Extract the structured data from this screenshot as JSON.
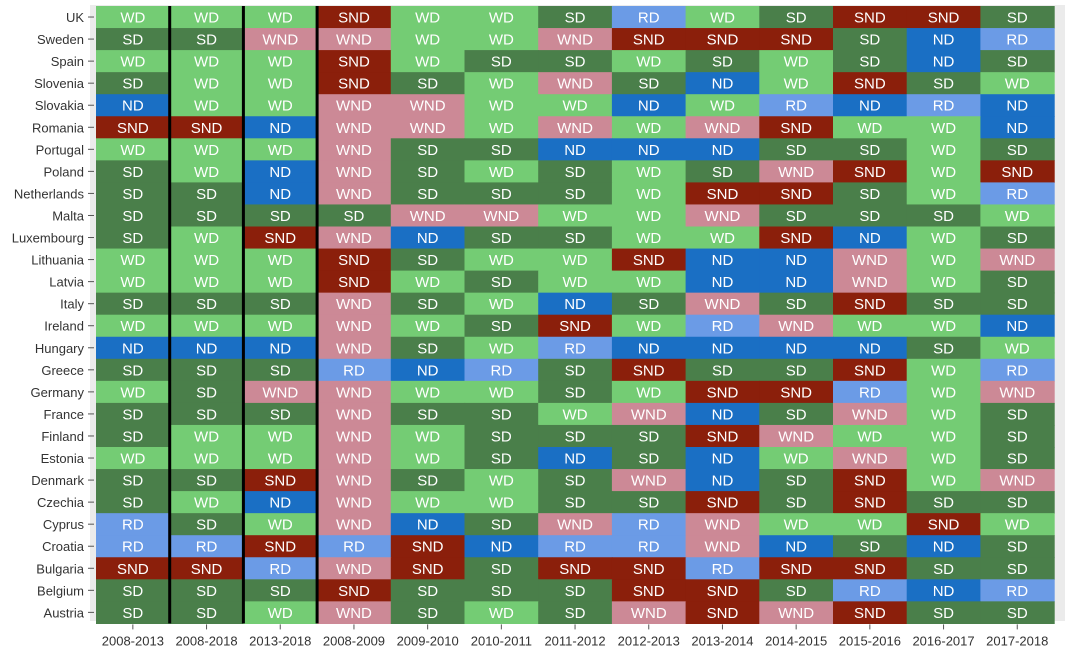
{
  "chart_data": {
    "type": "heatmap",
    "title": "",
    "xlabel": "",
    "ylabel": "",
    "columns": [
      "2008-2013",
      "2008-2018",
      "2013-2018",
      "2008-2009",
      "2009-2010",
      "2010-2011",
      "2011-2012",
      "2012-2013",
      "2013-2014",
      "2014-2015",
      "2015-2016",
      "2016-2017",
      "2017-2018"
    ],
    "rows": [
      "UK",
      "Sweden",
      "Spain",
      "Slovenia",
      "Slovakia",
      "Romania",
      "Portugal",
      "Poland",
      "Netherlands",
      "Malta",
      "Luxembourg",
      "Lithuania",
      "Latvia",
      "Italy",
      "Ireland",
      "Hungary",
      "Greece",
      "Germany",
      "France",
      "Finland",
      "Estonia",
      "Denmark",
      "Czechia",
      "Cyprus",
      "Croatia",
      "Bulgaria",
      "Belgium",
      "Austria"
    ],
    "categories": [
      "SND",
      "WND",
      "ND",
      "RD",
      "SD",
      "WD"
    ],
    "category_colors": {
      "SND": "#8b1f0b",
      "WND": "#cc8996",
      "ND": "#1a6fc4",
      "RD": "#6b9be6",
      "SD": "#4a7f4a",
      "WD": "#74cc74"
    },
    "column_separators_after": [
      0,
      1,
      2
    ],
    "grid": false,
    "legend": "none",
    "values": [
      [
        "WD",
        "WD",
        "WD",
        "SND",
        "WD",
        "WD",
        "SD",
        "RD",
        "WD",
        "SD",
        "SND",
        "SND",
        "SD"
      ],
      [
        "SD",
        "SD",
        "WND",
        "WND",
        "WD",
        "WD",
        "WND",
        "SND",
        "SND",
        "SND",
        "SD",
        "ND",
        "RD"
      ],
      [
        "WD",
        "WD",
        "WD",
        "SND",
        "WD",
        "SD",
        "SD",
        "WD",
        "SD",
        "WD",
        "SD",
        "ND",
        "SD"
      ],
      [
        "SD",
        "WD",
        "WD",
        "SND",
        "SD",
        "WD",
        "WND",
        "SD",
        "ND",
        "WD",
        "SND",
        "SD",
        "WD"
      ],
      [
        "ND",
        "WD",
        "WD",
        "WND",
        "WND",
        "WD",
        "WD",
        "ND",
        "WD",
        "RD",
        "ND",
        "RD",
        "ND"
      ],
      [
        "SND",
        "SND",
        "ND",
        "WND",
        "WND",
        "WD",
        "WND",
        "WD",
        "WND",
        "SND",
        "WD",
        "WD",
        "ND"
      ],
      [
        "WD",
        "WD",
        "WD",
        "WND",
        "SD",
        "SD",
        "ND",
        "ND",
        "ND",
        "SD",
        "SD",
        "WD",
        "SD"
      ],
      [
        "SD",
        "WD",
        "ND",
        "WND",
        "SD",
        "WD",
        "SD",
        "WD",
        "SD",
        "WND",
        "SND",
        "WD",
        "SND"
      ],
      [
        "SD",
        "SD",
        "ND",
        "WND",
        "SD",
        "SD",
        "SD",
        "WD",
        "SND",
        "SND",
        "SD",
        "WD",
        "RD"
      ],
      [
        "SD",
        "SD",
        "SD",
        "SD",
        "WND",
        "WND",
        "WD",
        "WD",
        "WND",
        "SD",
        "SD",
        "SD",
        "WD"
      ],
      [
        "SD",
        "WD",
        "SND",
        "WND",
        "ND",
        "SD",
        "SD",
        "WD",
        "WD",
        "SND",
        "ND",
        "WD",
        "SD"
      ],
      [
        "WD",
        "WD",
        "WD",
        "SND",
        "SD",
        "WD",
        "WD",
        "SND",
        "ND",
        "ND",
        "WND",
        "WD",
        "WND"
      ],
      [
        "WD",
        "WD",
        "WD",
        "SND",
        "WD",
        "SD",
        "WD",
        "WD",
        "ND",
        "ND",
        "WND",
        "WD",
        "SD"
      ],
      [
        "SD",
        "SD",
        "SD",
        "WND",
        "SD",
        "WD",
        "ND",
        "SD",
        "WND",
        "SD",
        "SND",
        "SD",
        "SD"
      ],
      [
        "WD",
        "WD",
        "WD",
        "WND",
        "WD",
        "SD",
        "SND",
        "WD",
        "RD",
        "WND",
        "WD",
        "WD",
        "ND"
      ],
      [
        "ND",
        "ND",
        "ND",
        "WND",
        "SD",
        "WD",
        "RD",
        "ND",
        "ND",
        "ND",
        "ND",
        "SD",
        "WD"
      ],
      [
        "SD",
        "SD",
        "SD",
        "RD",
        "ND",
        "RD",
        "SD",
        "SND",
        "SD",
        "SD",
        "SND",
        "WD",
        "RD"
      ],
      [
        "WD",
        "SD",
        "WND",
        "WND",
        "WD",
        "WD",
        "SD",
        "WD",
        "SND",
        "SND",
        "RD",
        "WD",
        "WND"
      ],
      [
        "SD",
        "SD",
        "SD",
        "WND",
        "SD",
        "SD",
        "WD",
        "WND",
        "ND",
        "SD",
        "WND",
        "WD",
        "SD"
      ],
      [
        "SD",
        "WD",
        "WD",
        "WND",
        "WD",
        "SD",
        "SD",
        "SD",
        "SND",
        "WND",
        "WD",
        "WD",
        "SD"
      ],
      [
        "WD",
        "WD",
        "WD",
        "WND",
        "WD",
        "SD",
        "ND",
        "SD",
        "ND",
        "WD",
        "WND",
        "WD",
        "SD"
      ],
      [
        "SD",
        "SD",
        "SND",
        "WND",
        "SD",
        "WD",
        "SD",
        "WND",
        "ND",
        "SD",
        "SND",
        "WD",
        "WND"
      ],
      [
        "SD",
        "WD",
        "ND",
        "WND",
        "WD",
        "WD",
        "SD",
        "SD",
        "SND",
        "SD",
        "SND",
        "SD",
        "SD"
      ],
      [
        "RD",
        "SD",
        "WD",
        "WND",
        "ND",
        "SD",
        "WND",
        "RD",
        "WND",
        "WD",
        "WD",
        "SND",
        "WD"
      ],
      [
        "RD",
        "RD",
        "SND",
        "RD",
        "SND",
        "ND",
        "RD",
        "RD",
        "WND",
        "ND",
        "SD",
        "ND",
        "SD"
      ],
      [
        "SND",
        "SND",
        "RD",
        "WND",
        "SND",
        "SD",
        "SND",
        "SND",
        "RD",
        "SND",
        "SND",
        "SD",
        "SD"
      ],
      [
        "SD",
        "SD",
        "SD",
        "SND",
        "SD",
        "SD",
        "SD",
        "SND",
        "SND",
        "SD",
        "RD",
        "ND",
        "RD"
      ],
      [
        "SD",
        "SD",
        "WD",
        "WND",
        "SD",
        "WD",
        "SD",
        "WND",
        "SND",
        "WND",
        "SND",
        "SD",
        "SD"
      ]
    ]
  }
}
